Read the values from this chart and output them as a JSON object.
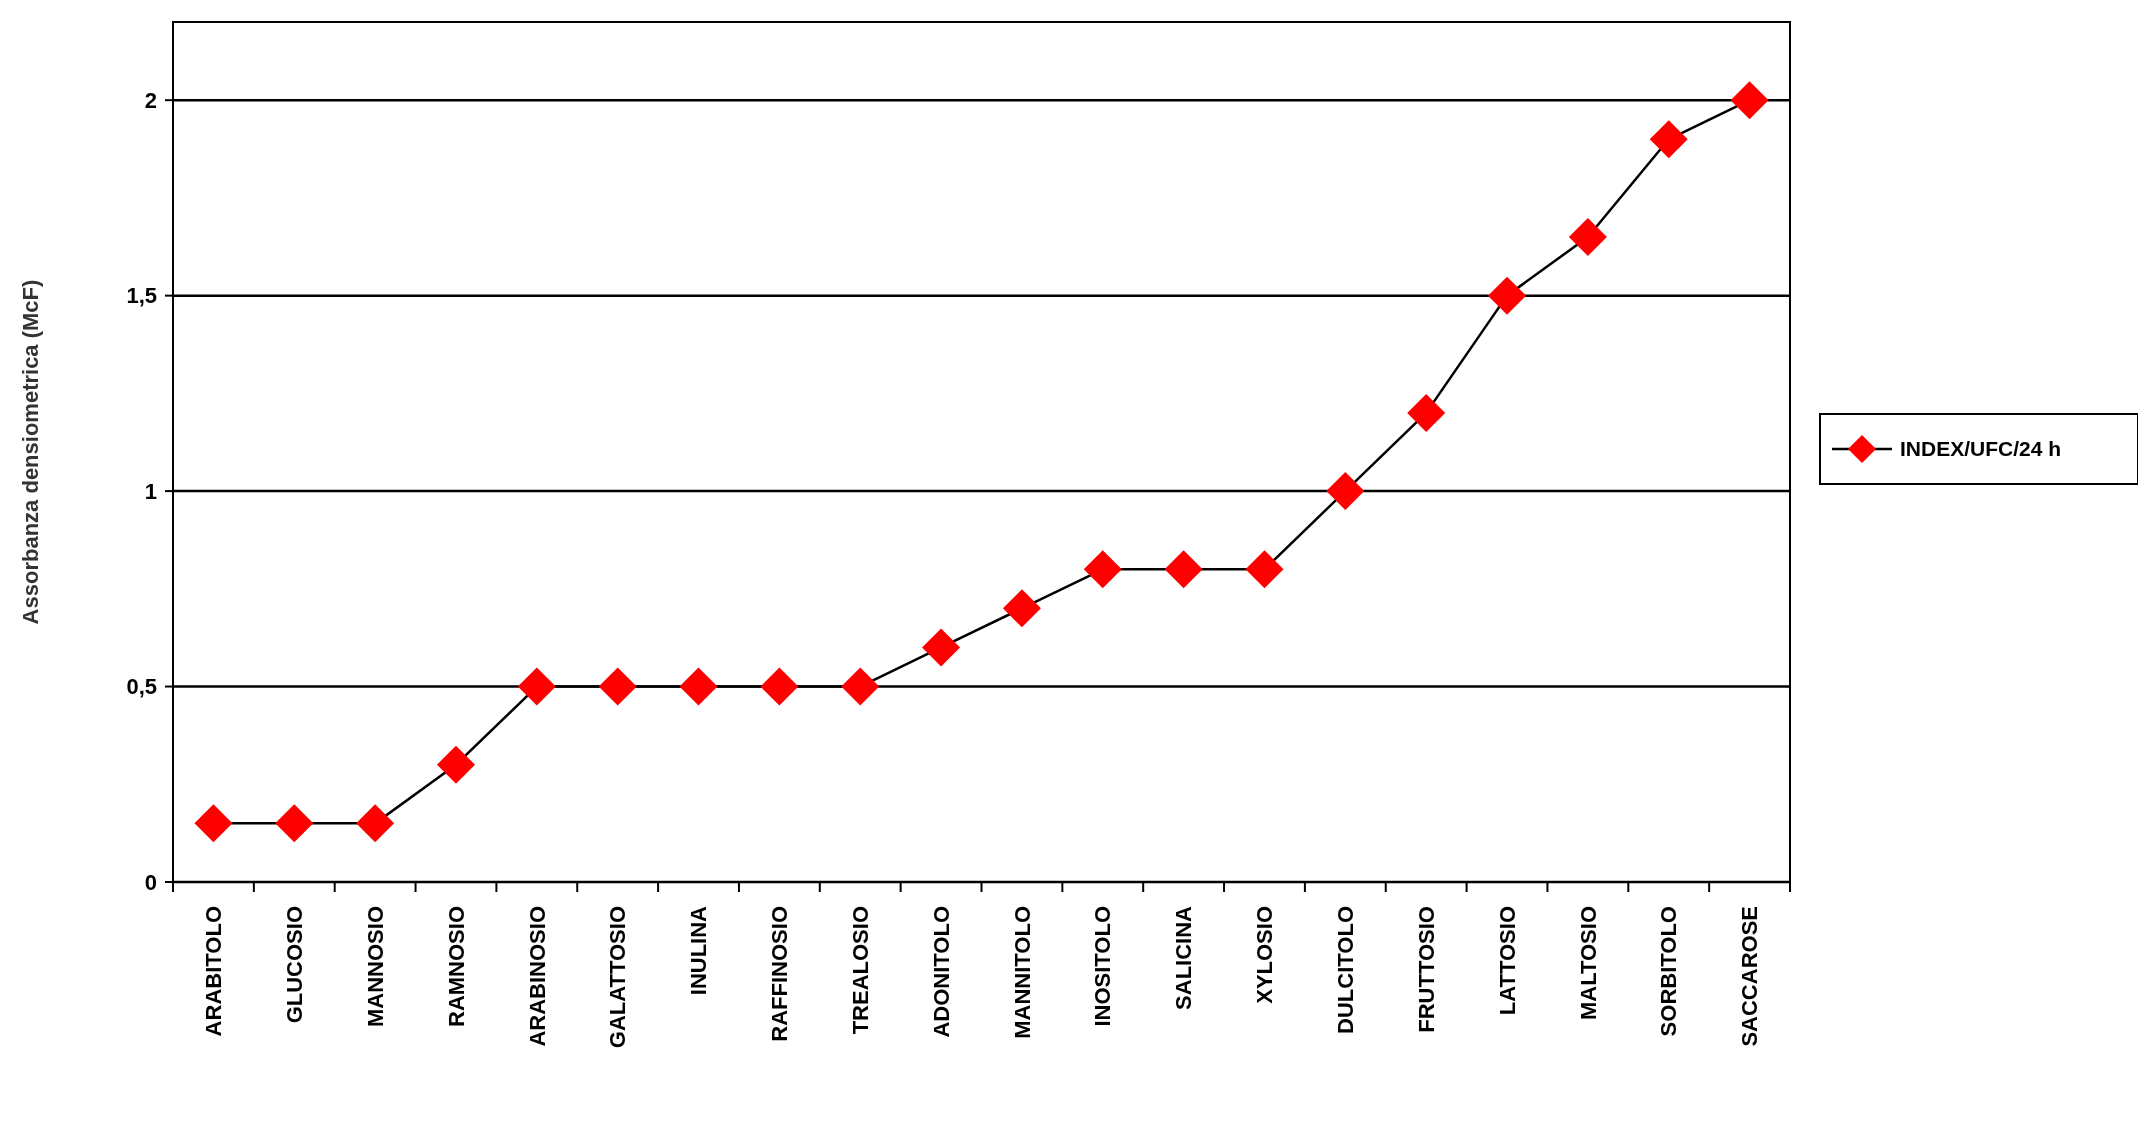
{
  "chart_data": {
    "type": "line",
    "ylabel": "Assorbanza  densiometrica  (McF)",
    "categories": [
      "ARABITOLO",
      "GLUCOSIO",
      "MANNOSIO",
      "RAMNOSIO",
      "ARABINOSIO",
      "GALATTOSIO",
      "INULINA",
      "RAFFINOSIO",
      "TREALOSIO",
      "ADONITOLO",
      "MANNITOLO",
      "INOSITOLO",
      "SALICINA",
      "XYLOSIO",
      "DULCITOLO",
      "FRUTTOSIO",
      "LATTOSIO",
      "MALTOSIO",
      "SORBITOLO",
      "SACCAROSE"
    ],
    "series": [
      {
        "name": "INDEX/UFC/24 h",
        "color": "#ff0000",
        "values": [
          0.15,
          0.15,
          0.15,
          0.3,
          0.5,
          0.5,
          0.5,
          0.5,
          0.5,
          0.6,
          0.7,
          0.8,
          0.8,
          0.8,
          1.0,
          1.2,
          1.5,
          1.65,
          1.9,
          2.0
        ]
      }
    ],
    "ylim": [
      0,
      2.2
    ],
    "yticks": [
      0,
      {
        "value": 0.5,
        "label": "0,5"
      },
      1,
      {
        "value": 1.5,
        "label": "1,5"
      },
      2
    ],
    "grid": "y",
    "legend": "right",
    "marker": "diamond",
    "line_style": "solid"
  }
}
